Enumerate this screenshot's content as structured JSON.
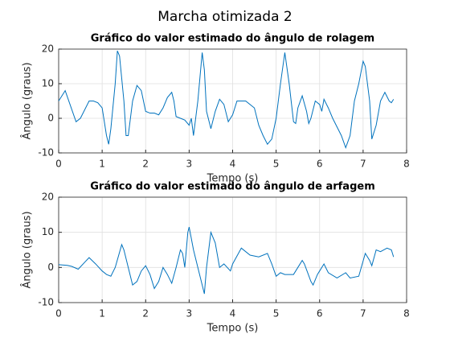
{
  "title": "Marcha otimizada 2",
  "chart_data": [
    {
      "type": "line",
      "title": "Gráfico do valor estimado do ângulo de rolagem",
      "xlabel": "Tempo (s)",
      "ylabel": "Ângulo (graus)",
      "x": [
        0,
        0.15,
        0.4,
        0.5,
        0.7,
        0.8,
        0.9,
        1.0,
        1.1,
        1.15,
        1.2,
        1.3,
        1.35,
        1.4,
        1.5,
        1.55,
        1.6,
        1.7,
        1.8,
        1.9,
        2.0,
        2.1,
        2.2,
        2.3,
        2.4,
        2.5,
        2.6,
        2.65,
        2.7,
        2.8,
        2.9,
        3.0,
        3.05,
        3.1,
        3.2,
        3.3,
        3.35,
        3.4,
        3.5,
        3.6,
        3.7,
        3.8,
        3.9,
        4.0,
        4.1,
        4.3,
        4.5,
        4.6,
        4.7,
        4.8,
        4.9,
        5.0,
        5.1,
        5.2,
        5.3,
        5.4,
        5.45,
        5.5,
        5.6,
        5.7,
        5.75,
        5.8,
        5.9,
        6.0,
        6.05,
        6.1,
        6.2,
        6.3,
        6.5,
        6.6,
        6.7,
        6.8,
        6.9,
        7.0,
        7.05,
        7.15,
        7.2,
        7.3,
        7.4,
        7.5,
        7.6,
        7.65,
        7.7
      ],
      "series": [
        {
          "color": "#0072bd",
          "values": [
            5,
            8,
            -1,
            0,
            5,
            5,
            4.5,
            3,
            -5,
            -7.5,
            -3,
            10,
            19.5,
            18,
            5,
            -5,
            -5,
            5,
            9.5,
            8,
            2,
            1.5,
            1.5,
            1,
            3,
            6,
            7.5,
            5,
            0.5,
            0,
            -0.5,
            -2,
            0,
            -5,
            5,
            19,
            14,
            2,
            -3,
            2,
            5.5,
            4,
            -1,
            1,
            5,
            5,
            3,
            -2,
            -5,
            -7.5,
            -6,
            0,
            10,
            19,
            10,
            -1,
            -1.5,
            3,
            6.5,
            2,
            -1.5,
            0,
            5,
            4,
            2,
            5.5,
            3,
            0,
            -5,
            -8.5,
            -5,
            5,
            10,
            16.5,
            15,
            5,
            -6,
            -2,
            5,
            7.5,
            5,
            4.5,
            5.5
          ]
        }
      ],
      "xlim": [
        0,
        8
      ],
      "ylim": [
        -10,
        20
      ],
      "xticks": [
        0,
        1,
        2,
        3,
        4,
        5,
        6,
        7,
        8
      ],
      "yticks": [
        -10,
        0,
        10,
        20
      ],
      "grid": true
    },
    {
      "type": "line",
      "title": "Gráfico do valor estimado do ângulo de arfagem",
      "xlabel": "Tempo (s)",
      "ylabel": "Ângulo (graus)",
      "x": [
        0,
        0.2,
        0.3,
        0.45,
        0.6,
        0.7,
        0.85,
        1.0,
        1.1,
        1.2,
        1.3,
        1.45,
        1.5,
        1.6,
        1.7,
        1.8,
        1.9,
        2.0,
        2.1,
        2.2,
        2.3,
        2.4,
        2.5,
        2.6,
        2.7,
        2.8,
        2.85,
        2.9,
        2.97,
        3.0,
        3.1,
        3.2,
        3.3,
        3.35,
        3.4,
        3.5,
        3.6,
        3.7,
        3.8,
        3.95,
        4.0,
        4.2,
        4.4,
        4.6,
        4.8,
        4.9,
        5.0,
        5.1,
        5.2,
        5.4,
        5.6,
        5.65,
        5.8,
        5.85,
        5.95,
        6.0,
        6.1,
        6.2,
        6.4,
        6.6,
        6.7,
        6.9,
        7.05,
        7.15,
        7.2,
        7.3,
        7.4,
        7.55,
        7.65,
        7.7
      ],
      "series": [
        {
          "color": "#0072bd",
          "values": [
            0.8,
            0.6,
            0.3,
            -0.5,
            1.5,
            2.8,
            1,
            -1,
            -2,
            -2.5,
            0,
            6.5,
            5,
            0,
            -5,
            -4,
            -1,
            0.5,
            -2,
            -6,
            -4,
            0,
            -2,
            -4.5,
            0,
            5,
            4,
            0,
            10,
            11.5,
            5,
            0,
            -5,
            -7.5,
            0,
            10,
            7,
            0,
            1,
            -1,
            1,
            5.5,
            3.5,
            3,
            4,
            1,
            -2.5,
            -1.5,
            -2,
            -2,
            2,
            1,
            -4,
            -5,
            -2,
            -1,
            1,
            -1.5,
            -3,
            -1.5,
            -3,
            -2.5,
            4,
            2,
            0.5,
            5,
            4.5,
            5.5,
            5,
            3
          ]
        }
      ],
      "xlim": [
        0,
        8
      ],
      "ylim": [
        -10,
        20
      ],
      "xticks": [
        0,
        1,
        2,
        3,
        4,
        5,
        6,
        7,
        8
      ],
      "yticks": [
        -10,
        0,
        10,
        20
      ],
      "grid": true
    }
  ]
}
